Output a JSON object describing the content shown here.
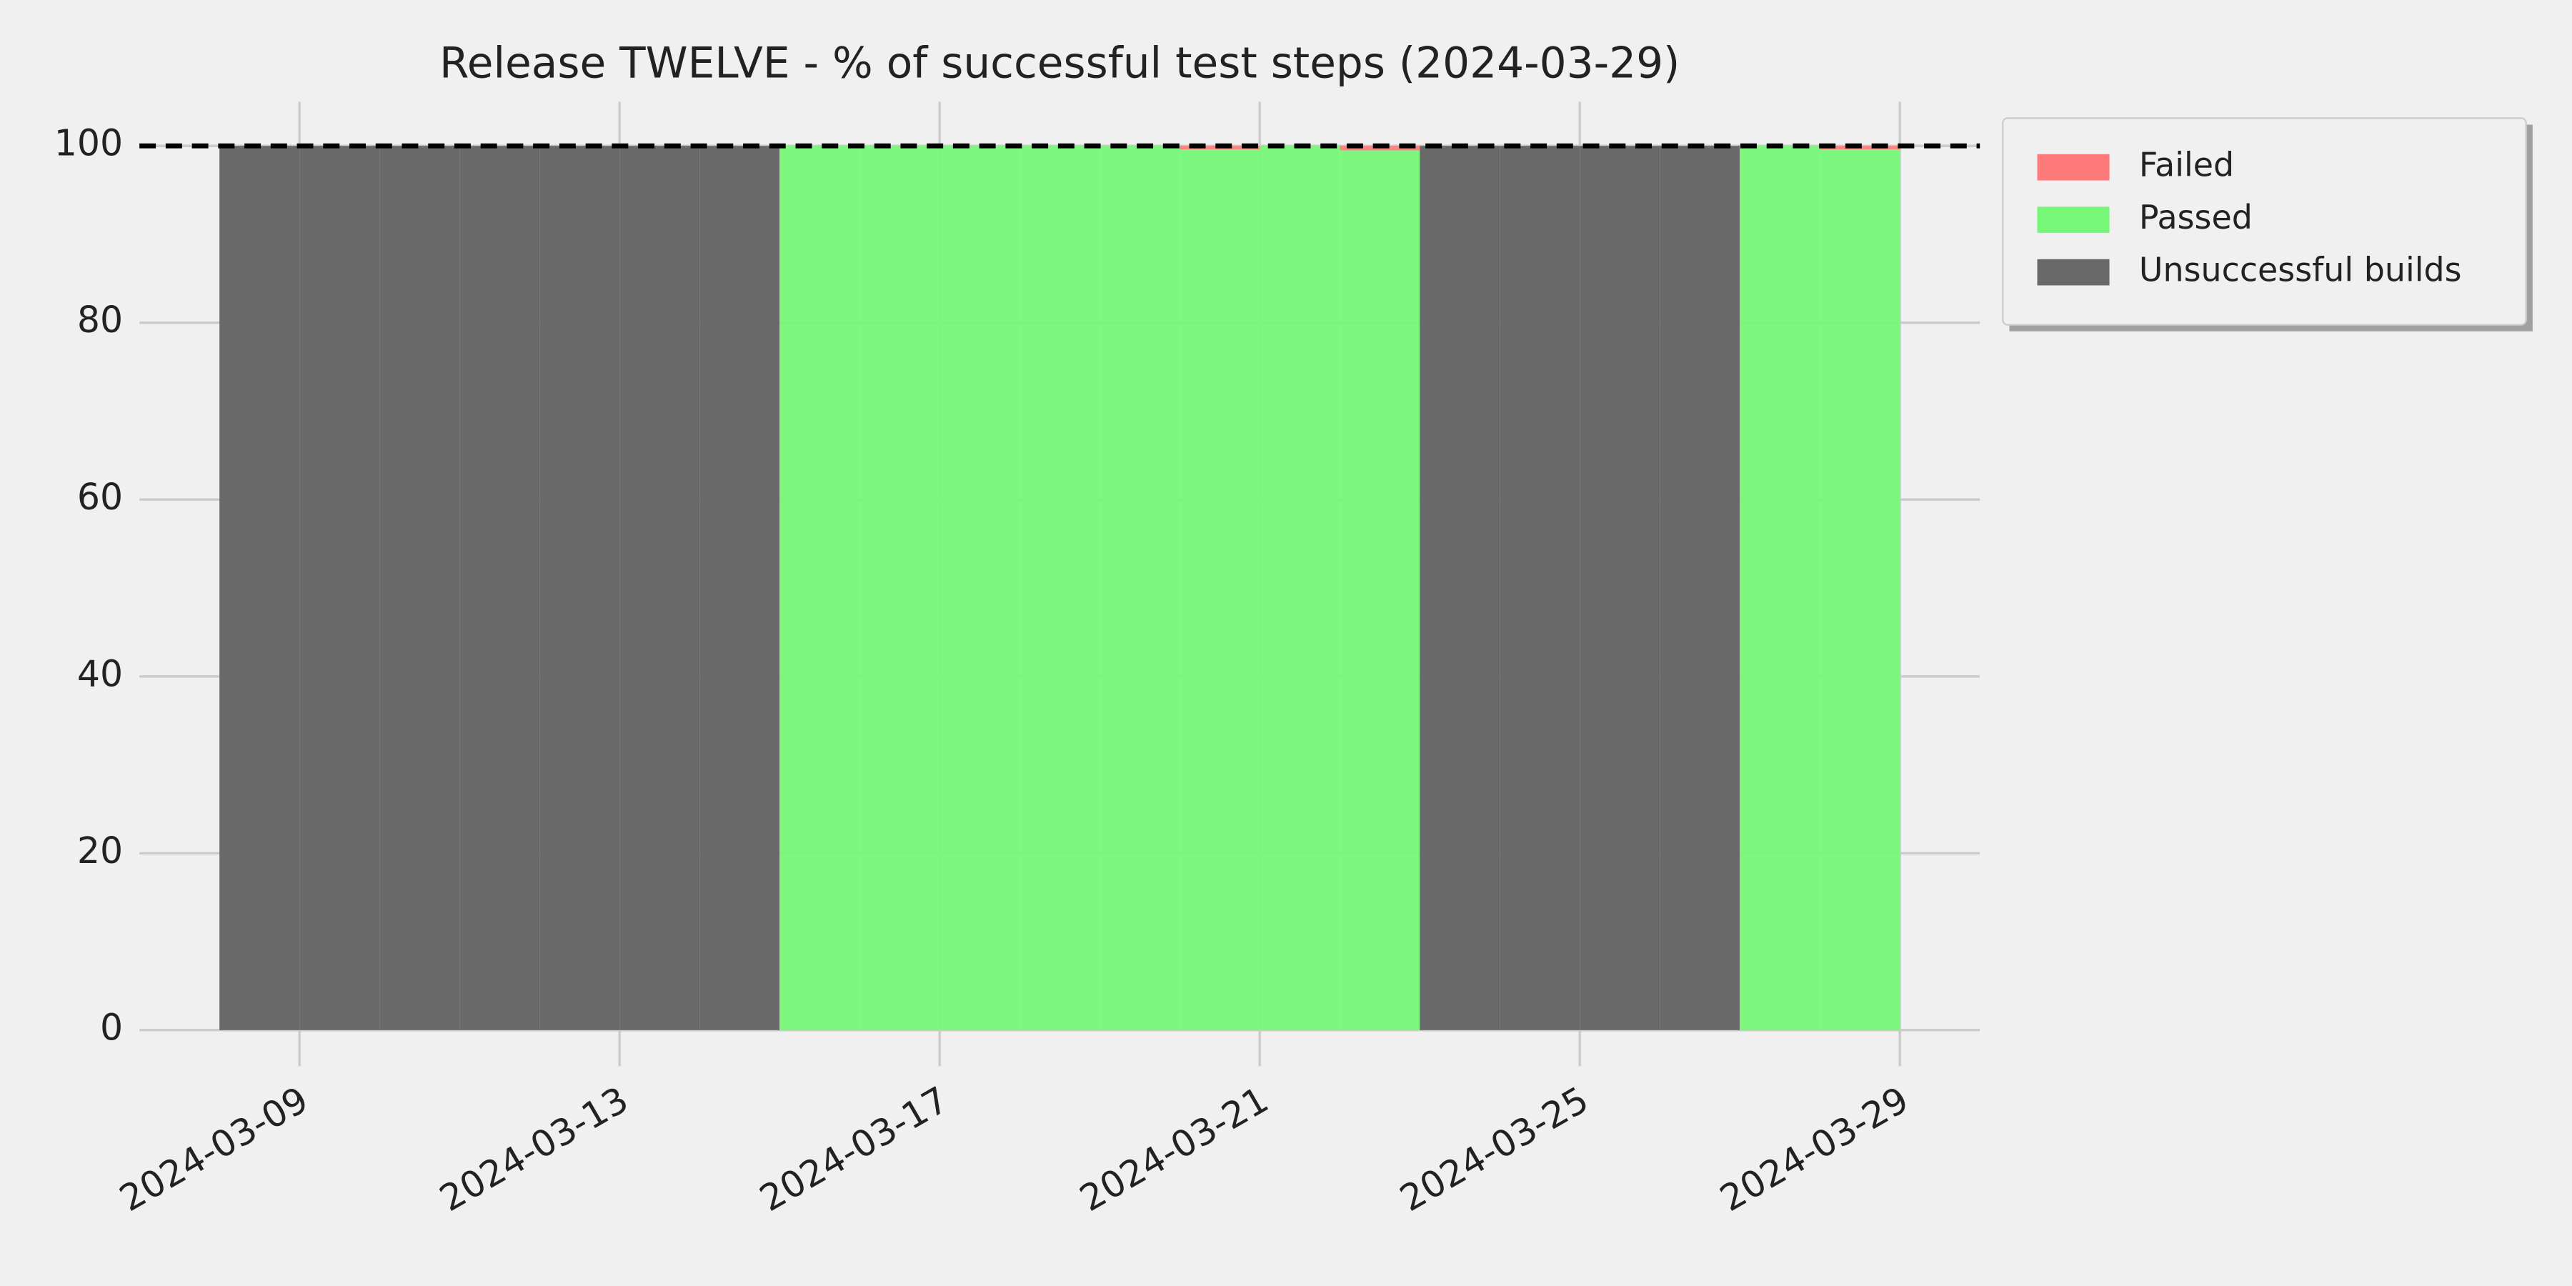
{
  "chart_data": {
    "type": "bar",
    "stacked": true,
    "title": "Release TWELVE - % of successful test steps (2024-03-29)",
    "x": [
      "2024-03-08",
      "2024-03-09",
      "2024-03-10",
      "2024-03-11",
      "2024-03-12",
      "2024-03-13",
      "2024-03-14",
      "2024-03-15",
      "2024-03-16",
      "2024-03-17",
      "2024-03-18",
      "2024-03-19",
      "2024-03-20",
      "2024-03-21",
      "2024-03-22",
      "2024-03-23",
      "2024-03-24",
      "2024-03-25",
      "2024-03-26",
      "2024-03-27",
      "2024-03-28"
    ],
    "series": [
      {
        "name": "Failed",
        "color": "#ff7b7b",
        "values": [
          0,
          0,
          0,
          0,
          0,
          0,
          0,
          0,
          0,
          0,
          0,
          0,
          0.4,
          0,
          0.5,
          0,
          0,
          0,
          0,
          0,
          0.4
        ]
      },
      {
        "name": "Passed",
        "color": "#77f777",
        "values": [
          0,
          0,
          0,
          0,
          0,
          0,
          0,
          100,
          100,
          100,
          100,
          100,
          99.6,
          100,
          99.5,
          0,
          0,
          0,
          0,
          100,
          99.6
        ]
      },
      {
        "name": "Unsuccessful builds",
        "color": "#696969",
        "values": [
          100,
          100,
          100,
          100,
          100,
          100,
          100,
          0,
          0,
          0,
          0,
          0,
          0,
          0,
          0,
          100,
          100,
          100,
          100,
          0,
          0
        ]
      }
    ],
    "xlim": [
      "2024-03-07",
      "2024-03-30"
    ],
    "xticks": [
      "2024-03-09",
      "2024-03-13",
      "2024-03-17",
      "2024-03-21",
      "2024-03-25",
      "2024-03-29"
    ],
    "ylim": [
      0,
      105
    ],
    "yticks": [
      0,
      20,
      40,
      60,
      80,
      100
    ],
    "reference_line": 100,
    "grid": true,
    "legend": "outside upper right"
  }
}
